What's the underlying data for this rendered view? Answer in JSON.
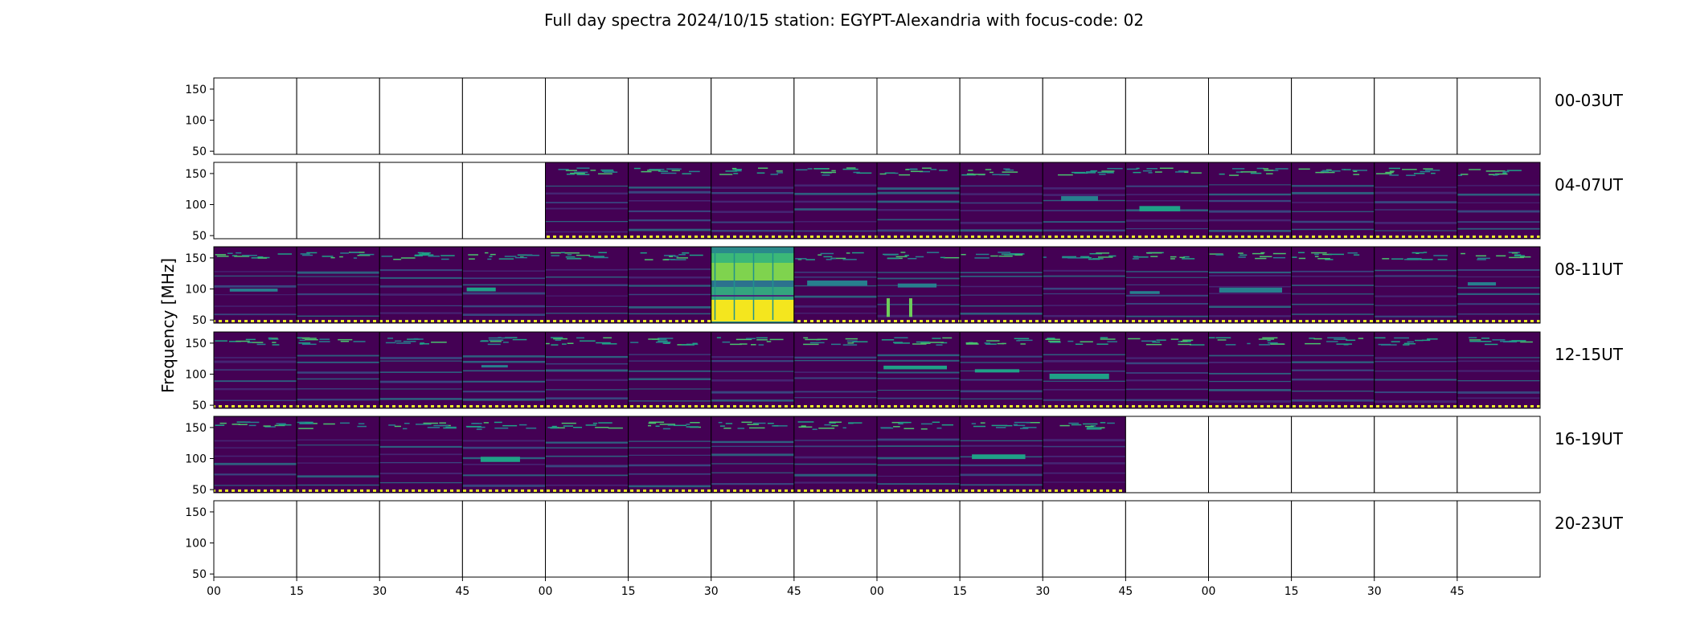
{
  "chart_data": {
    "type": "heatmap",
    "title": "Full day spectra 2024/10/15 station: EGYPT-Alexandria with focus-code: 02",
    "ylabel": "Frequency [MHz]",
    "y_ticks": [
      "50",
      "100",
      "150"
    ],
    "ylim": [
      45,
      168
    ],
    "x_ticks": [
      "00",
      "15",
      "30",
      "45",
      "00",
      "15",
      "30",
      "45",
      "00",
      "15",
      "30",
      "45",
      "00",
      "15",
      "30",
      "45"
    ],
    "panels_per_row": 16,
    "panel_minutes": 15,
    "colormap": "viridis",
    "rows": [
      {
        "label": "00-03UT",
        "available": [
          0,
          0,
          0,
          0,
          0,
          0,
          0,
          0,
          0,
          0,
          0,
          0,
          0,
          0,
          0,
          0
        ]
      },
      {
        "label": "04-07UT",
        "available": [
          0,
          0,
          0,
          0,
          1,
          1,
          1,
          1,
          1,
          1,
          1,
          1,
          1,
          1,
          1,
          1
        ]
      },
      {
        "label": "08-11UT",
        "available": [
          1,
          1,
          1,
          1,
          1,
          1,
          1,
          1,
          1,
          1,
          1,
          1,
          1,
          1,
          1,
          1
        ]
      },
      {
        "label": "12-15UT",
        "available": [
          1,
          1,
          1,
          1,
          1,
          1,
          1,
          1,
          1,
          1,
          1,
          1,
          1,
          1,
          1,
          1
        ]
      },
      {
        "label": "16-19UT",
        "available": [
          1,
          1,
          1,
          1,
          1,
          1,
          1,
          1,
          1,
          1,
          1,
          0,
          0,
          0,
          0,
          0
        ]
      },
      {
        "label": "20-23UT",
        "available": [
          0,
          0,
          0,
          0,
          0,
          0,
          0,
          0,
          0,
          0,
          0,
          0,
          0,
          0,
          0,
          0
        ]
      }
    ],
    "bursts": [
      {
        "row": 2,
        "panel": 6,
        "note": "strong broadband emission"
      },
      {
        "row": 2,
        "panel": 8,
        "note": "short bursts 50-90 MHz"
      }
    ]
  }
}
